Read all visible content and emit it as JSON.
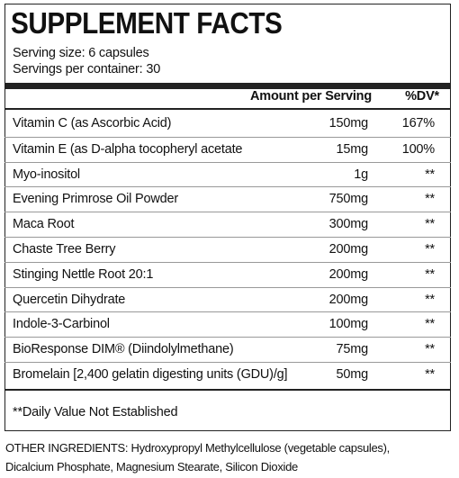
{
  "header": {
    "title": "SUPPLEMENT FACTS",
    "serving_size": "Serving size: 6 capsules",
    "servings_per_container": "Servings per container: 30"
  },
  "table": {
    "columns": [
      "Amount per Serving",
      "%DV*"
    ],
    "rows": [
      [
        "Vitamin C (as Ascorbic Acid)",
        "150mg",
        "167%"
      ],
      [
        "Vitamin E (as D-alpha tocopheryl acetate",
        "15mg",
        "100%"
      ],
      [
        "Myo-inositol",
        "1g",
        "**"
      ],
      [
        "Evening Primrose Oil Powder",
        "750mg",
        "**"
      ],
      [
        "Maca Root",
        "300mg",
        "**"
      ],
      [
        "Chaste Tree Berry",
        "200mg",
        "**"
      ],
      [
        "Stinging Nettle Root 20:1",
        "200mg",
        "**"
      ],
      [
        "Quercetin Dihydrate",
        "200mg",
        "**"
      ],
      [
        "Indole-3-Carbinol",
        "100mg",
        "**"
      ],
      [
        "BioResponse DIM® (Diindolylmethane)",
        "75mg",
        "**"
      ],
      [
        "Bromelain [2,400 gelatin digesting units (GDU)/g]",
        "50mg",
        "**"
      ]
    ]
  },
  "footnote": "**Daily Value Not Established",
  "other_ingredients": "OTHER INGREDIENTS: Hydroxypropyl Methylcellulose (vegetable capsules), Dicalcium Phosphate, Magnesium Stearate, Silicon Dioxide"
}
